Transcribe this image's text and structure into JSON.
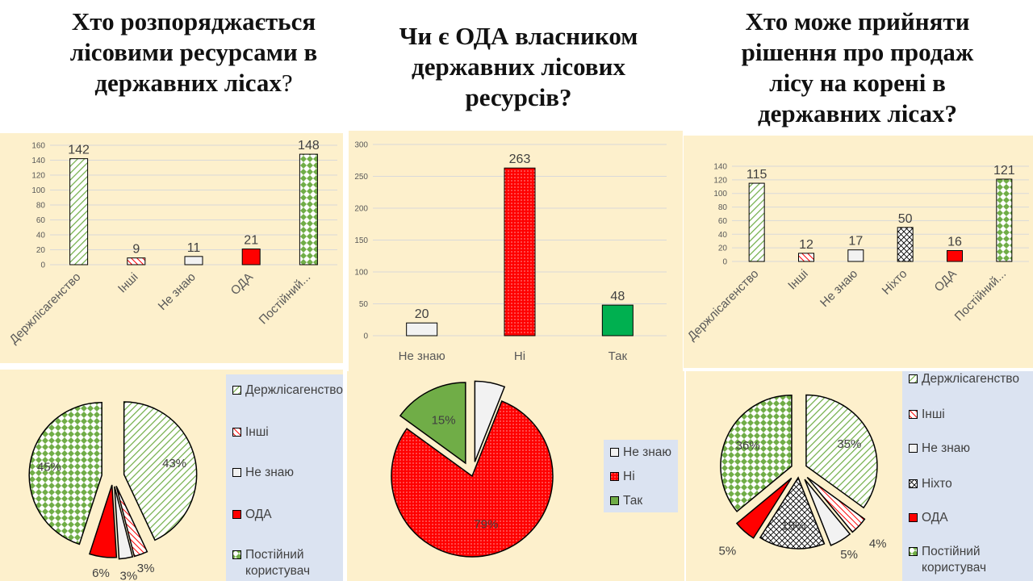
{
  "titles": {
    "t1": "Хто розпоряджається лісовими ресурсами в державних лісах",
    "t1_q": "?",
    "t2": "Чи є ОДА власником державних лісових ресурсів?",
    "t3": "Хто може прийняти рішення про  продаж лісу на корені в державних лісах?"
  },
  "colors": {
    "panel_bg": "#fdf0cc",
    "legend_bg": "#dbe3f1",
    "red": "#ff0000",
    "green_solid": "#00b050",
    "hatch_green": "#70ad47",
    "light_gray": "#f2f2f2"
  },
  "chart_data": [
    {
      "type": "bar",
      "categories": [
        "Держлісагенство",
        "Інші",
        "Не знаю",
        "ОДА",
        "Постійний..."
      ],
      "values": [
        142,
        9,
        11,
        21,
        148
      ],
      "ylim": [
        0,
        160
      ],
      "yticks": [
        "0",
        "20",
        "40",
        "60",
        "80",
        "100",
        "120",
        "140",
        "160"
      ],
      "data_labels": [
        "142",
        "9",
        "11",
        "21",
        "148"
      ],
      "grid": true
    },
    {
      "type": "bar",
      "categories": [
        "Не знаю",
        "Ні",
        "Так"
      ],
      "values": [
        20,
        263,
        48
      ],
      "ylim": [
        0,
        300
      ],
      "yticks": [
        "0",
        "50",
        "100",
        "150",
        "200",
        "250",
        "300"
      ],
      "data_labels": [
        "20",
        "263",
        "48"
      ],
      "grid": true
    },
    {
      "type": "bar",
      "categories": [
        "Держлісагенство",
        "Інші",
        "Не знаю",
        "Ніхто",
        "ОДА",
        "Постійний..."
      ],
      "values": [
        115,
        12,
        17,
        50,
        16,
        121
      ],
      "ylim": [
        0,
        140
      ],
      "yticks": [
        "0",
        "20",
        "40",
        "60",
        "80",
        "100",
        "120",
        "140"
      ],
      "data_labels": [
        "115",
        "12",
        "17",
        "50",
        "16",
        "121"
      ],
      "grid": true
    },
    {
      "type": "pie",
      "labels": [
        "Держлісагенство",
        "Інші",
        "Не знаю",
        "ОДА",
        "Постійний користувач"
      ],
      "values": [
        43,
        3,
        3,
        6,
        45
      ],
      "data_labels": [
        "43%",
        "3%",
        "3%",
        "6%",
        "45%"
      ],
      "legend_position": "right"
    },
    {
      "type": "pie",
      "labels": [
        "Не знаю",
        "Ні",
        "Так"
      ],
      "values": [
        6,
        79,
        15
      ],
      "data_labels": [
        "6%",
        "79%",
        "15%"
      ],
      "legend_position": "right"
    },
    {
      "type": "pie",
      "labels": [
        "Держлісагенство",
        "Інші",
        "Не знаю",
        "Ніхто",
        "ОДА",
        "Постійний користувач"
      ],
      "values": [
        35,
        4,
        5,
        15,
        5,
        36
      ],
      "data_labels": [
        "35%",
        "4%",
        "5%",
        "15%",
        "5%",
        "36%"
      ],
      "legend_position": "right"
    }
  ]
}
